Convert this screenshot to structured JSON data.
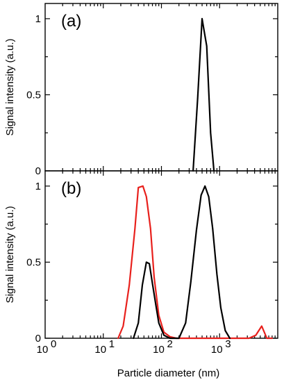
{
  "chart_data": [
    {
      "type": "line",
      "panel_label": "(a)",
      "xscale": "log",
      "xlim": [
        1,
        10000
      ],
      "ylim": [
        0,
        1.1
      ],
      "xlabel": "",
      "ylabel": "Signal intensity  (a.u.)",
      "y_ticks": [
        "0",
        "0.5",
        "1"
      ],
      "x_ticks": [],
      "series": [
        {
          "color": "#000000",
          "x": [
            350,
            420,
            500,
            600,
            700,
            800
          ],
          "y": [
            0,
            0.48,
            1.0,
            0.82,
            0.25,
            0
          ]
        }
      ]
    },
    {
      "type": "line",
      "panel_label": "(b)",
      "xscale": "log",
      "xlim": [
        1,
        10000
      ],
      "ylim": [
        0,
        1.1
      ],
      "xlabel": "Particle diameter  (nm)",
      "ylabel": "Signal intensity  (a.u.)",
      "y_ticks": [
        "0",
        "0.5",
        "1"
      ],
      "x_ticks": [
        {
          "base": "10",
          "exp": "0"
        },
        {
          "base": "10",
          "exp": "1"
        },
        {
          "base": "10",
          "exp": "2"
        },
        {
          "base": "10",
          "exp": "3"
        }
      ],
      "series": [
        {
          "color": "#e8201c",
          "x": [
            18,
            22,
            28,
            35,
            40,
            48,
            55,
            65,
            75,
            90,
            110,
            140,
            180,
            1000,
            3200,
            4200,
            5300,
            6500,
            8000
          ],
          "y": [
            0,
            0.08,
            0.35,
            0.72,
            0.99,
            1.0,
            0.93,
            0.72,
            0.4,
            0.15,
            0.04,
            0.01,
            0,
            0,
            0,
            0.02,
            0.08,
            0,
            0
          ]
        },
        {
          "color": "#000000",
          "x": [
            33,
            40,
            47,
            55,
            62,
            70,
            80,
            90,
            110,
            140,
            200,
            260,
            320,
            400,
            480,
            560,
            650,
            760,
            900,
            1050,
            1250,
            1500
          ],
          "y": [
            0,
            0.1,
            0.35,
            0.5,
            0.49,
            0.36,
            0.22,
            0.1,
            0.02,
            0,
            0,
            0.1,
            0.37,
            0.71,
            0.94,
            1.0,
            0.93,
            0.72,
            0.42,
            0.2,
            0.05,
            0
          ]
        }
      ]
    }
  ]
}
